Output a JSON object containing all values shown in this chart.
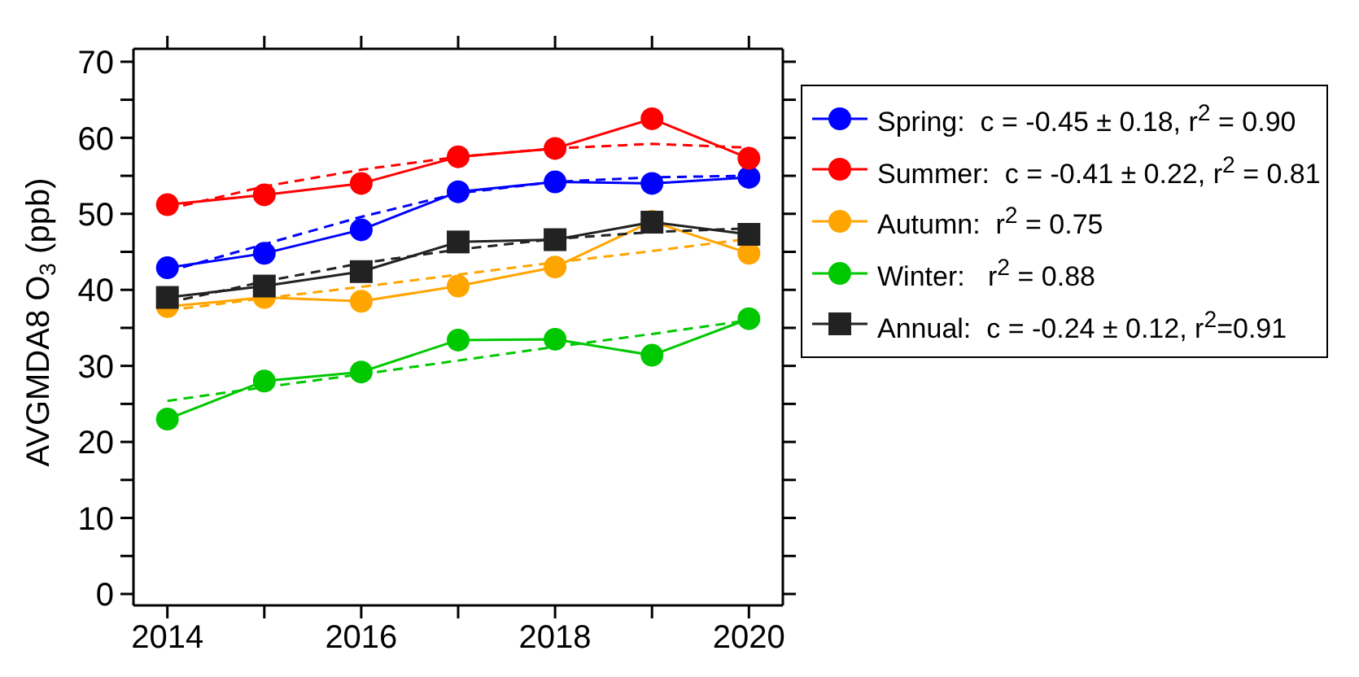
{
  "chart_data": {
    "type": "line",
    "ylabel": "AVGMDA8 O$_{3}$ (ppb)",
    "xlim": [
      2013.65,
      2020.35
    ],
    "xticks": [
      2014,
      {
        "value": 2015,
        "label": null
      },
      2016,
      {
        "value": 2017,
        "label": null
      },
      2018,
      {
        "value": 2019,
        "label": null
      },
      2020
    ],
    "ylim": [
      -1.5,
      71.7
    ],
    "yticks": [
      0,
      {
        "value": 5,
        "label": null
      },
      10,
      {
        "value": 15,
        "label": null
      },
      20,
      {
        "value": 25,
        "label": null
      },
      30,
      {
        "value": 35,
        "label": null
      },
      40,
      {
        "value": 45,
        "label": null
      },
      50,
      {
        "value": 55,
        "label": null
      },
      60,
      {
        "value": 65,
        "label": null
      },
      70
    ],
    "x": [
      2014,
      2015,
      2016,
      2017,
      2018,
      2019,
      2020
    ],
    "grid": false,
    "legend": "right",
    "marker": "circle",
    "line_style": "solid",
    "series": [
      {
        "name": "Spring:  c = -0.45 ± 0.18, r$^{2}$ = 0.90",
        "color": "#0000ff",
        "values": [
          42.9,
          44.8,
          47.9,
          52.9,
          54.2,
          54.0,
          54.8
        ]
      },
      {
        "name": "Summer:  c = -0.41 ± 0.22, r$^{2}$ = 0.81",
        "color": "#ff0000",
        "values": [
          51.2,
          52.5,
          54.0,
          57.5,
          58.6,
          62.5,
          57.3
        ]
      },
      {
        "name": "Autumn:  r$^{2}$ = 0.75",
        "color": "#ffa500",
        "values": [
          37.8,
          39.0,
          38.5,
          40.5,
          43.0,
          49.0,
          44.8
        ]
      },
      {
        "name": "Winter:   r$^{2}$ = 0.88",
        "color": "#00c800",
        "values": [
          23.0,
          28.0,
          29.2,
          33.4,
          33.5,
          31.4,
          36.2
        ]
      },
      {
        "name": "Annual:  c = -0.24 ± 0.12, r$^{2}$=0.91",
        "color": "#222222",
        "marker": "square",
        "values": [
          39.0,
          40.5,
          42.4,
          46.3,
          46.6,
          48.9,
          47.3
        ]
      },
      {
        "color": "#0000ff",
        "marker": "none",
        "line_style": "dashed",
        "values": [
          42.4,
          46.0,
          49.6,
          52.7,
          54.2,
          54.8,
          55.0
        ]
      },
      {
        "color": "#ff0000",
        "marker": "none",
        "line_style": "dashed",
        "values": [
          50.6,
          53.6,
          55.8,
          57.5,
          58.6,
          59.2,
          58.7
        ]
      },
      {
        "color": "#ffa500",
        "marker": "none",
        "line_style": "dashed",
        "values": [
          37.3,
          38.9,
          40.4,
          42.0,
          43.6,
          45.1,
          46.7
        ]
      },
      {
        "color": "#00c800",
        "marker": "none",
        "line_style": "dashed",
        "values": [
          25.4,
          27.2,
          28.9,
          30.7,
          32.5,
          34.2,
          36.0
        ]
      },
      {
        "color": "#222222",
        "marker": "none",
        "line_style": "dashed",
        "values": [
          38.3,
          41.1,
          43.5,
          45.3,
          46.7,
          47.6,
          48.1
        ]
      }
    ]
  }
}
